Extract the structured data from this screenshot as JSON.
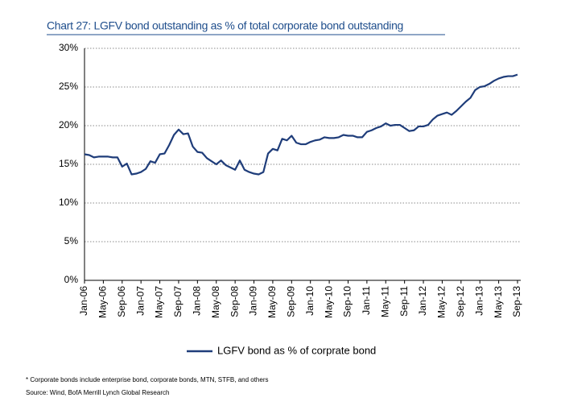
{
  "chart_data": {
    "type": "line",
    "title": "Chart 27: LGFV bond outstanding as % of total corporate bond outstanding",
    "categories": [
      "Jan-06",
      null,
      null,
      null,
      "May-06",
      null,
      null,
      null,
      "Sep-06",
      null,
      null,
      null,
      "Jan-07",
      null,
      null,
      null,
      "May-07",
      null,
      null,
      null,
      "Sep-07",
      null,
      null,
      null,
      "Jan-08",
      null,
      null,
      null,
      "May-08",
      null,
      null,
      null,
      "Sep-08",
      null,
      null,
      null,
      "Jan-09",
      null,
      null,
      null,
      "May-09",
      null,
      null,
      null,
      "Sep-09",
      null,
      null,
      null,
      "Jan-10",
      null,
      null,
      null,
      "May-10",
      null,
      null,
      null,
      "Sep-10",
      null,
      null,
      null,
      "Jan-11",
      null,
      null,
      null,
      "May-11",
      null,
      null,
      null,
      "Sep-11",
      null,
      null,
      null,
      "Jan-12",
      null,
      null,
      null,
      "May-12",
      null,
      null,
      null,
      "Sep-12",
      null,
      null,
      null,
      "Jan-13",
      null,
      null,
      null,
      "May-13",
      null,
      null,
      null,
      "Sep-13"
    ],
    "series": [
      {
        "name": "LGFV bond as % of corprate bond",
        "color": "#1f3d7a",
        "values": [
          16.3,
          16.2,
          15.9,
          16.0,
          16.0,
          16.0,
          15.9,
          15.9,
          14.7,
          15.1,
          13.7,
          13.8,
          14.0,
          14.4,
          15.4,
          15.2,
          16.3,
          16.4,
          17.5,
          18.8,
          19.5,
          18.9,
          19.0,
          17.3,
          16.6,
          16.5,
          15.8,
          15.4,
          15.0,
          15.5,
          14.9,
          14.6,
          14.3,
          15.5,
          14.3,
          14.0,
          13.8,
          13.7,
          14.0,
          16.4,
          17.0,
          16.8,
          18.3,
          18.1,
          18.7,
          17.8,
          17.6,
          17.6,
          17.9,
          18.1,
          18.2,
          18.5,
          18.4,
          18.4,
          18.5,
          18.8,
          18.7,
          18.7,
          18.5,
          18.5,
          19.2,
          19.4,
          19.7,
          19.9,
          20.3,
          20.0,
          20.1,
          20.1,
          19.7,
          19.3,
          19.4,
          19.9,
          19.9,
          20.1,
          20.8,
          21.3,
          21.5,
          21.7,
          21.4,
          21.9,
          22.5,
          23.1,
          23.6,
          24.6,
          25.0,
          25.1,
          25.4,
          25.8,
          26.1,
          26.3,
          26.4,
          26.4,
          26.6
        ]
      }
    ],
    "ylim": [
      0,
      30
    ],
    "yticks": [
      {
        "value": 0,
        "label": "0%"
      },
      {
        "value": 5,
        "label": "5%"
      },
      {
        "value": 10,
        "label": "10%"
      },
      {
        "value": 15,
        "label": "15%"
      },
      {
        "value": 20,
        "label": "20%"
      },
      {
        "value": 25,
        "label": "25%"
      },
      {
        "value": 30,
        "label": "30%"
      }
    ],
    "grid": true,
    "legend": "bottom",
    "notes": [
      "* Corporate bonds include enterprise bond, corporate bonds, MTN, STFB, and others",
      "Source: Wind, BofA Merrill Lynch Global Research"
    ]
  }
}
